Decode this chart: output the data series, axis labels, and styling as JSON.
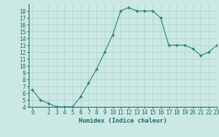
{
  "x": [
    0,
    1,
    2,
    3,
    4,
    5,
    6,
    7,
    8,
    9,
    10,
    11,
    12,
    13,
    14,
    15,
    16,
    17,
    18,
    19,
    20,
    21,
    22,
    23
  ],
  "y": [
    6.5,
    5.0,
    4.5,
    4.0,
    4.0,
    4.0,
    5.5,
    7.5,
    9.5,
    12.0,
    14.5,
    18.0,
    18.5,
    18.0,
    18.0,
    18.0,
    17.0,
    13.0,
    13.0,
    13.0,
    12.5,
    11.5,
    12.0,
    13.0
  ],
  "line_color": "#2a8a7a",
  "marker_color": "#2a8a7a",
  "bg_color": "#cce8e5",
  "grid_color": "#aacfcc",
  "xlabel": "Humidex (Indice chaleur)",
  "ylim": [
    4,
    19
  ],
  "xlim": [
    -0.5,
    23
  ],
  "yticks": [
    4,
    5,
    6,
    7,
    8,
    9,
    10,
    11,
    12,
    13,
    14,
    15,
    16,
    17,
    18
  ],
  "xticks": [
    0,
    2,
    3,
    4,
    5,
    6,
    7,
    8,
    9,
    10,
    11,
    12,
    13,
    14,
    15,
    16,
    17,
    18,
    19,
    20,
    21,
    22,
    23
  ],
  "xlabel_fontsize": 6.5,
  "tick_fontsize": 5.8,
  "axis_color": "#1a6a60",
  "linewidth": 0.9,
  "markersize": 2.0
}
